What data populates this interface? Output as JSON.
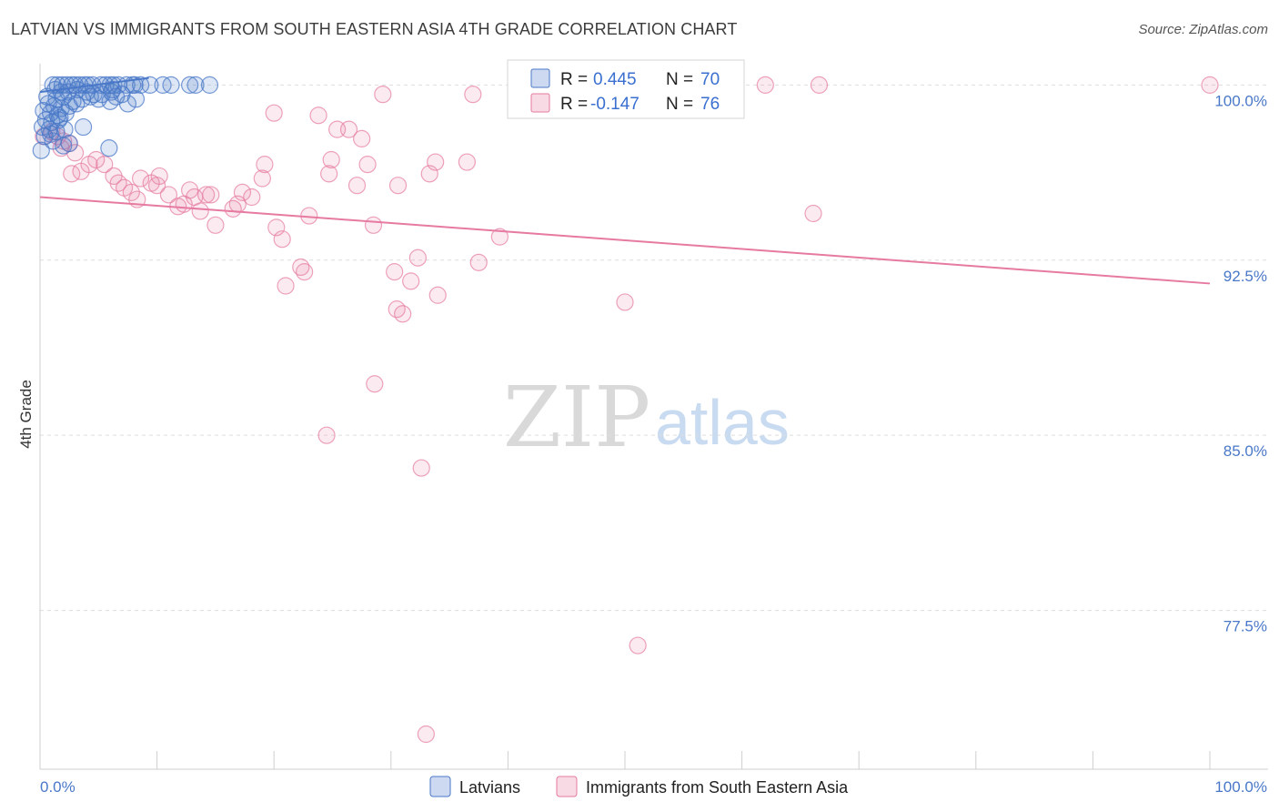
{
  "title": "LATVIAN VS IMMIGRANTS FROM SOUTH EASTERN ASIA 4TH GRADE CORRELATION CHART",
  "source": "Source: ZipAtlas.com",
  "watermark": {
    "part1": "ZIP",
    "part2": "atlas"
  },
  "legend_top": {
    "rows": [
      {
        "r_label": "R =",
        "r_value": "0.445",
        "n_label": "N =",
        "n_value": "70",
        "color": "#4a78c8"
      },
      {
        "r_label": "R =",
        "r_value": "-0.147",
        "n_label": "N =",
        "n_value": "76",
        "color": "#e67aa0"
      }
    ]
  },
  "legend_bottom": {
    "items": [
      {
        "label": "Latvians",
        "color": "#4a78c8"
      },
      {
        "label": "Immigrants from South Eastern Asia",
        "color": "#e67aa0"
      }
    ]
  },
  "chart_data": {
    "type": "scatter",
    "title": "LATVIAN VS IMMIGRANTS FROM SOUTH EASTERN ASIA 4TH GRADE CORRELATION CHART",
    "xlabel": "",
    "ylabel": "4th Grade",
    "xlim": [
      0,
      100
    ],
    "ylim": [
      70.7,
      100.6
    ],
    "x_tick_labels": [
      "0.0%",
      "100.0%"
    ],
    "y_ticks": [
      {
        "value": 100.0,
        "label": "100.0%"
      },
      {
        "value": 92.5,
        "label": "92.5%"
      },
      {
        "value": 85.0,
        "label": "85.0%"
      },
      {
        "value": 77.5,
        "label": "77.5%"
      }
    ],
    "grid": true,
    "series": [
      {
        "name": "Latvians",
        "color": "#4a78c8",
        "trendline": {
          "x": [
            0.0,
            9.3
          ],
          "y": [
            99.7,
            100.3
          ]
        },
        "points": [
          [
            1.1,
            100.0
          ],
          [
            1.5,
            100.0
          ],
          [
            1.9,
            100.0
          ],
          [
            2.3,
            100.0
          ],
          [
            2.7,
            100.0
          ],
          [
            3.0,
            100.0
          ],
          [
            3.4,
            100.0
          ],
          [
            3.8,
            100.0
          ],
          [
            4.1,
            100.0
          ],
          [
            4.5,
            100.0
          ],
          [
            5.2,
            100.0
          ],
          [
            5.6,
            100.0
          ],
          [
            6.0,
            100.0
          ],
          [
            6.3,
            100.0
          ],
          [
            6.7,
            100.0
          ],
          [
            7.4,
            100.0
          ],
          [
            8.1,
            100.0
          ],
          [
            8.6,
            100.0
          ],
          [
            10.5,
            100.0
          ],
          [
            12.8,
            100.0
          ],
          [
            13.3,
            100.0
          ],
          [
            14.5,
            100.0
          ],
          [
            1.3,
            99.8
          ],
          [
            1.8,
            99.7
          ],
          [
            2.4,
            99.7
          ],
          [
            3.2,
            99.8
          ],
          [
            4.0,
            99.7
          ],
          [
            4.6,
            99.6
          ],
          [
            5.3,
            99.6
          ],
          [
            6.1,
            99.7
          ],
          [
            7.0,
            99.6
          ],
          [
            0.6,
            99.5
          ],
          [
            1.4,
            99.4
          ],
          [
            2.0,
            99.5
          ],
          [
            2.8,
            99.3
          ],
          [
            3.6,
            99.4
          ],
          [
            4.3,
            99.5
          ],
          [
            5.0,
            99.4
          ],
          [
            6.5,
            99.5
          ],
          [
            8.2,
            99.4
          ],
          [
            0.7,
            99.2
          ],
          [
            1.2,
            99.1
          ],
          [
            1.8,
            99.0
          ],
          [
            2.5,
            99.1
          ],
          [
            3.1,
            99.2
          ],
          [
            6.0,
            99.3
          ],
          [
            7.5,
            99.2
          ],
          [
            0.3,
            98.9
          ],
          [
            0.9,
            98.8
          ],
          [
            1.5,
            98.7
          ],
          [
            2.2,
            98.8
          ],
          [
            0.5,
            98.5
          ],
          [
            1.0,
            98.4
          ],
          [
            1.6,
            98.5
          ],
          [
            0.2,
            98.2
          ],
          [
            0.8,
            98.1
          ],
          [
            1.4,
            98.0
          ],
          [
            2.1,
            98.1
          ],
          [
            3.7,
            98.2
          ],
          [
            0.4,
            97.8
          ],
          [
            1.1,
            97.6
          ],
          [
            2.0,
            97.4
          ],
          [
            2.5,
            97.5
          ],
          [
            5.9,
            97.3
          ],
          [
            0.1,
            97.2
          ],
          [
            6.2,
            99.8
          ],
          [
            7.9,
            100.0
          ],
          [
            9.4,
            100.0
          ],
          [
            11.2,
            100.0
          ],
          [
            0.9,
            97.9
          ],
          [
            1.7,
            98.6
          ]
        ]
      },
      {
        "name": "Immigrants from South Eastern Asia",
        "color": "#e67aa0",
        "trendline": {
          "x": [
            0.0,
            100.0
          ],
          "y": [
            95.2,
            91.5
          ]
        },
        "points": [
          [
            0.3,
            97.8
          ],
          [
            1.0,
            98.0
          ],
          [
            1.5,
            97.8
          ],
          [
            2.0,
            97.6
          ],
          [
            2.5,
            97.5
          ],
          [
            1.8,
            97.3
          ],
          [
            3.0,
            97.1
          ],
          [
            3.5,
            96.3
          ],
          [
            4.2,
            96.6
          ],
          [
            4.8,
            96.8
          ],
          [
            5.5,
            96.6
          ],
          [
            6.3,
            96.1
          ],
          [
            6.7,
            95.8
          ],
          [
            7.2,
            95.6
          ],
          [
            7.8,
            95.4
          ],
          [
            8.3,
            95.1
          ],
          [
            8.6,
            96.0
          ],
          [
            9.5,
            95.8
          ],
          [
            10.0,
            95.7
          ],
          [
            10.2,
            96.1
          ],
          [
            11.0,
            95.3
          ],
          [
            11.8,
            94.8
          ],
          [
            12.3,
            94.9
          ],
          [
            12.8,
            95.5
          ],
          [
            13.2,
            95.2
          ],
          [
            13.7,
            94.6
          ],
          [
            14.2,
            95.3
          ],
          [
            14.6,
            95.3
          ],
          [
            15.0,
            94.0
          ],
          [
            16.5,
            94.7
          ],
          [
            16.9,
            94.9
          ],
          [
            17.3,
            95.4
          ],
          [
            18.1,
            95.2
          ],
          [
            19.0,
            96.0
          ],
          [
            19.2,
            96.6
          ],
          [
            20.0,
            98.8
          ],
          [
            20.2,
            93.9
          ],
          [
            20.7,
            93.4
          ],
          [
            21.0,
            91.4
          ],
          [
            22.3,
            92.2
          ],
          [
            22.6,
            92.0
          ],
          [
            23.0,
            94.4
          ],
          [
            23.8,
            98.7
          ],
          [
            24.7,
            96.2
          ],
          [
            24.5,
            85.0
          ],
          [
            24.9,
            96.8
          ],
          [
            25.4,
            98.1
          ],
          [
            26.4,
            98.1
          ],
          [
            27.1,
            95.7
          ],
          [
            27.5,
            97.7
          ],
          [
            28.0,
            96.6
          ],
          [
            28.5,
            94.0
          ],
          [
            28.6,
            87.2
          ],
          [
            29.3,
            99.6
          ],
          [
            30.3,
            92.0
          ],
          [
            30.5,
            90.4
          ],
          [
            30.6,
            95.7
          ],
          [
            31.0,
            90.2
          ],
          [
            31.7,
            91.6
          ],
          [
            32.3,
            92.6
          ],
          [
            32.6,
            83.6
          ],
          [
            33.3,
            96.2
          ],
          [
            33.8,
            96.7
          ],
          [
            34.0,
            91.0
          ],
          [
            36.5,
            96.7
          ],
          [
            37.0,
            99.6
          ],
          [
            37.5,
            92.4
          ],
          [
            39.3,
            93.5
          ],
          [
            50.0,
            90.7
          ],
          [
            51.1,
            76.0
          ],
          [
            33.0,
            72.2
          ],
          [
            62.0,
            100.0
          ],
          [
            66.1,
            94.5
          ],
          [
            66.6,
            100.0
          ],
          [
            100.0,
            100.0
          ],
          [
            2.7,
            96.2
          ]
        ]
      }
    ]
  }
}
